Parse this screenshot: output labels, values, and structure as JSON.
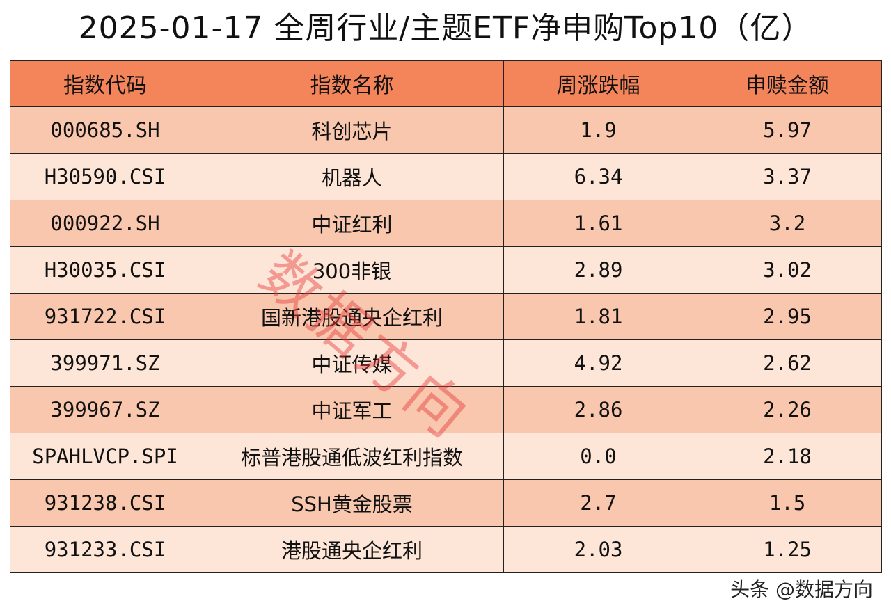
{
  "title": "2025-01-17 全周行业/主题ETF净申购Top10（亿）",
  "colors": {
    "header_bg": "#f4845a",
    "row_odd_bg": "#f8c7ae",
    "row_even_bg": "#fde5d7",
    "watermark": "#e43c3c"
  },
  "table": {
    "headers": [
      "指数代码",
      "指数名称",
      "周涨跌幅",
      "申赎金额"
    ],
    "rows": [
      [
        "000685.SH",
        "科创芯片",
        "1.9",
        "5.97"
      ],
      [
        "H30590.CSI",
        "机器人",
        "6.34",
        "3.37"
      ],
      [
        "000922.SH",
        "中证红利",
        "1.61",
        "3.2"
      ],
      [
        "H30035.CSI",
        "300非银",
        "2.89",
        "3.02"
      ],
      [
        "931722.CSI",
        "国新港股通央企红利",
        "1.81",
        "2.95"
      ],
      [
        "399971.SZ",
        "中证传媒",
        "4.92",
        "2.62"
      ],
      [
        "399967.SZ",
        "中证军工",
        "2.86",
        "2.26"
      ],
      [
        "SPAHLVCP.SPI",
        "标普港股通低波红利指数",
        "0.0",
        "2.18"
      ],
      [
        "931238.CSI",
        "SSH黄金股票",
        "2.7",
        "1.5"
      ],
      [
        "931233.CSI",
        "港股通央企红利",
        "2.03",
        "1.25"
      ]
    ]
  },
  "watermark": "数据方向",
  "footer": "头条 @数据方向"
}
